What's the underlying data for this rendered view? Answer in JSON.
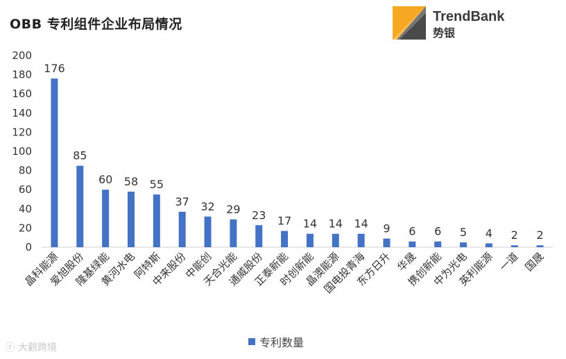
{
  "title": "OBB 专利组件企业布局情况",
  "logo": {
    "name": "TrendBank",
    "cn": "势银"
  },
  "watermark": "大觀跨境",
  "colors": {
    "bar": "#4472C4",
    "logo_orange": "#F7A823",
    "logo_dark": "#3a3a3a"
  },
  "chart_data": {
    "type": "bar",
    "categories": [
      "晶科能源",
      "爱旭股份",
      "隆基绿能",
      "黄河水电",
      "阿特斯",
      "中来股份",
      "中能创",
      "天合光能",
      "通威股份",
      "正泰新能",
      "时创新能",
      "晶澳能源",
      "国电投青海",
      "东方日升",
      "华晟",
      "携创新能",
      "中为光电",
      "英利能源",
      "一道",
      "国晟"
    ],
    "series": [
      {
        "name": "专利数量",
        "values": [
          176,
          85,
          60,
          58,
          55,
          37,
          32,
          29,
          23,
          17,
          14,
          14,
          14,
          9,
          6,
          6,
          5,
          4,
          2,
          2
        ]
      }
    ],
    "ylim": [
      0,
      200
    ],
    "yticks": [
      0,
      20,
      40,
      60,
      80,
      100,
      120,
      140,
      160,
      180,
      200
    ],
    "grid": false,
    "legend": "bottom"
  }
}
